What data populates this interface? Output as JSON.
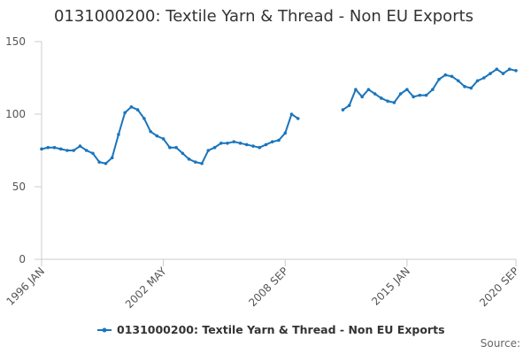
{
  "chart_data": {
    "type": "line",
    "title": "0131000200: Textile Yarn & Thread - Non EU Exports",
    "x": [
      "1996 JAN",
      "1996 MAY",
      "1996 SEP",
      "1997 JAN",
      "1997 MAY",
      "1997 SEP",
      "1998 JAN",
      "1998 MAY",
      "1998 SEP",
      "1999 JAN",
      "1999 MAY",
      "1999 SEP",
      "2000 JAN",
      "2000 MAY",
      "2000 SEP",
      "2001 JAN",
      "2001 MAY",
      "2001 SEP",
      "2002 JAN",
      "2002 MAY",
      "2002 SEP",
      "2003 JAN",
      "2003 MAY",
      "2003 SEP",
      "2004 JAN",
      "2004 MAY",
      "2004 SEP",
      "2005 JAN",
      "2005 MAY",
      "2005 SEP",
      "2006 JAN",
      "2006 MAY",
      "2006 SEP",
      "2007 JAN",
      "2007 MAY",
      "2007 SEP",
      "2008 JAN",
      "2008 MAY",
      "2008 SEP",
      "2009 JAN",
      "2009 MAY",
      "2009 SEP",
      "2010 JAN",
      "2010 MAY",
      "2010 SEP",
      "2011 JAN",
      "2011 MAY",
      "2011 SEP",
      "2012 JAN",
      "2012 MAY",
      "2012 SEP",
      "2013 JAN",
      "2013 MAY",
      "2013 SEP",
      "2014 JAN",
      "2014 MAY",
      "2014 SEP",
      "2015 JAN",
      "2015 MAY",
      "2015 SEP",
      "2016 JAN",
      "2016 MAY",
      "2016 SEP",
      "2017 JAN",
      "2017 MAY",
      "2017 SEP",
      "2018 JAN",
      "2018 MAY",
      "2018 SEP",
      "2019 JAN",
      "2019 MAY",
      "2019 SEP",
      "2020 JAN",
      "2020 MAY",
      "2020 SEP"
    ],
    "series": [
      {
        "name": "0131000200: Textile Yarn & Thread - Non EU Exports",
        "color": "#1a75bc",
        "values": [
          76,
          77,
          77,
          76,
          75,
          75,
          78,
          75,
          73,
          67,
          66,
          70,
          86,
          101,
          105,
          103,
          97,
          88,
          85,
          83,
          77,
          77,
          73,
          69,
          67,
          66,
          75,
          77,
          80,
          80,
          81,
          80,
          79,
          78,
          77,
          79,
          81,
          82,
          87,
          100,
          97,
          null,
          null,
          null,
          null,
          null,
          null,
          103,
          106,
          117,
          112,
          117,
          114,
          111,
          109,
          108,
          114,
          117,
          112,
          113,
          113,
          117,
          124,
          127,
          126,
          123,
          119,
          118,
          123,
          125,
          128,
          131,
          128,
          131,
          130
        ]
      }
    ],
    "ylim": [
      0,
      150
    ],
    "yticks": [
      0,
      50,
      100,
      150
    ],
    "xticks": [
      "1996 JAN",
      "2002 MAY",
      "2008 SEP",
      "2015 JAN",
      "2020 SEP"
    ],
    "source": "Source:"
  }
}
